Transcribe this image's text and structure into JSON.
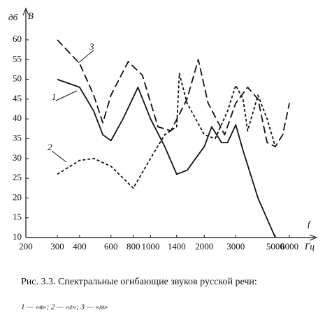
{
  "chart_data": {
    "type": "line",
    "y_label": "дб",
    "y_unit": "В",
    "x_label": "f",
    "x_unit": "Гц",
    "log_x": true,
    "xlim": [
      200,
      8000
    ],
    "ylim": [
      10,
      66
    ],
    "xticks": [
      200,
      300,
      400,
      600,
      800,
      1000,
      1400,
      2000,
      3000,
      5000,
      6000
    ],
    "yticks": [
      10,
      15,
      20,
      25,
      30,
      35,
      40,
      45,
      50,
      55,
      60
    ],
    "series": [
      {
        "name": "1",
        "color": "#111111",
        "dash": "none",
        "x": [
          300,
          400,
          480,
          540,
          600,
          700,
          850,
          1000,
          1200,
          1400,
          1600,
          2000,
          2200,
          2500,
          2700,
          3000,
          3300,
          4000,
          5000
        ],
        "values": [
          50,
          48,
          42,
          36,
          34.5,
          40,
          48,
          40,
          33,
          26,
          27,
          33,
          38,
          34,
          34,
          38.5,
          32,
          20,
          10
        ]
      },
      {
        "name": "2",
        "color": "#111111",
        "dash": "4,3",
        "x": [
          300,
          400,
          480,
          600,
          800,
          1000,
          1200,
          1400,
          1450,
          1600,
          2000,
          2300,
          2700,
          3000,
          3300,
          3500,
          4000,
          4500,
          5000
        ],
        "values": [
          26,
          29.5,
          30,
          28,
          22.5,
          30,
          36,
          38,
          51.5,
          44,
          36,
          35,
          42,
          48.5,
          45,
          37,
          46,
          40,
          33
        ]
      },
      {
        "name": "3",
        "color": "#111111",
        "dash": "11,5",
        "x": [
          300,
          400,
          480,
          540,
          600,
          750,
          900,
          1100,
          1300,
          1600,
          1850,
          2100,
          2600,
          3000,
          3500,
          4000,
          4500,
          5000,
          5500,
          6000
        ],
        "values": [
          60,
          54,
          46,
          39,
          46,
          54.5,
          51,
          38,
          37,
          45,
          55,
          44,
          36,
          44,
          48,
          45,
          34,
          33,
          36,
          44
        ]
      }
    ],
    "caption": "Рис. 3.3. Спектральные огибающие звуков русской речи:",
    "caption_legend": "1 — «в»;  2 — «г»;  3 — «м»"
  }
}
